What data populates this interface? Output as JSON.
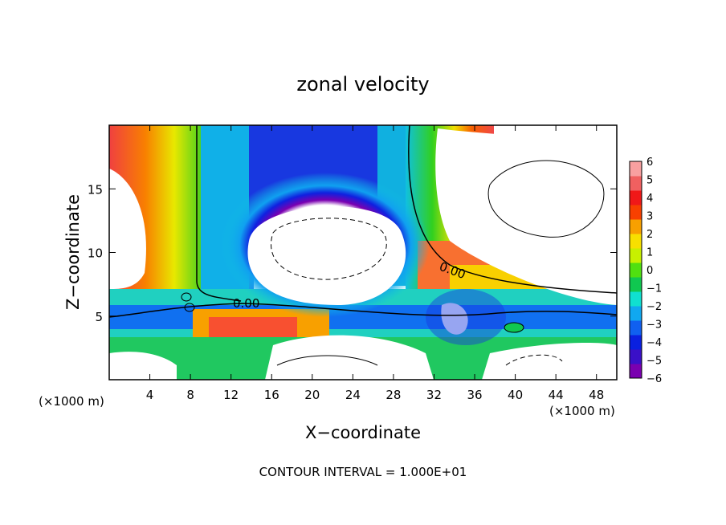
{
  "chart_data": {
    "type": "heatmap",
    "title": "zonal velocity",
    "xlabel": "X−coordinate",
    "ylabel": "Z−coordinate",
    "x_unit_label": "(×1000 m)",
    "x_unit_label_right": "(×1000 m)",
    "xlim": [
      0,
      50
    ],
    "ylim": [
      0,
      20
    ],
    "x_ticks": [
      4,
      8,
      12,
      16,
      20,
      24,
      28,
      32,
      36,
      40,
      44,
      48
    ],
    "y_ticks": [
      5,
      10,
      15
    ],
    "colorbar": {
      "min": -6,
      "max": 6,
      "tick_labels": [
        "6",
        "5",
        "4",
        "3",
        "2",
        "1",
        "0",
        "−1",
        "−2",
        "−3",
        "−4",
        "−5",
        "−6"
      ],
      "colors": [
        "#7a00b0",
        "#3a10c8",
        "#0a20e0",
        "#1060f0",
        "#10a8f0",
        "#10e0d0",
        "#10c850",
        "#50e010",
        "#c8f000",
        "#f8e000",
        "#f8a000",
        "#f84000",
        "#f01818",
        "#f06060",
        "#f8a0a0"
      ]
    },
    "contour_labels": [
      "0.00",
      "0.00"
    ],
    "annotation": "CONTOUR INTERVAL = 1.000E+01",
    "grid": false,
    "legend": "right colorbar"
  }
}
